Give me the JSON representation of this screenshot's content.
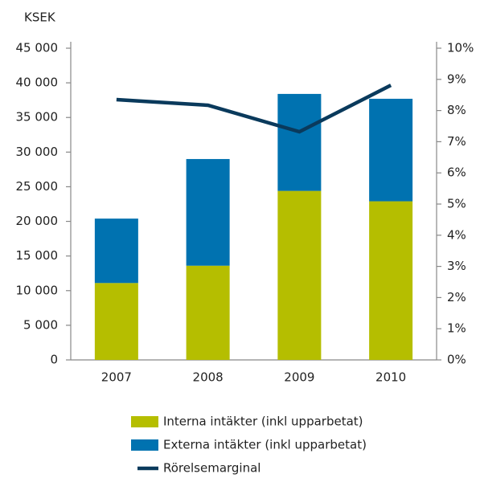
{
  "chart_data": {
    "type": "bar",
    "stacked": true,
    "y_label": "KSEK",
    "categories": [
      "2007",
      "2008",
      "2009",
      "2010"
    ],
    "series": [
      {
        "name": "Interna intäkter (inkl upparbetat)",
        "color": "#b5be00",
        "values": [
          11100,
          13600,
          24400,
          22900
        ]
      },
      {
        "name": "Externa intäkter (inkl upparbetat)",
        "color": "#0072b0",
        "values": [
          9300,
          15400,
          14000,
          14800
        ]
      },
      {
        "name": "Rörelsemarginal",
        "type": "line",
        "axis": "y2",
        "color": "#0a3a5c",
        "values": [
          8.35,
          8.17,
          7.32,
          8.81
        ]
      }
    ],
    "ylim": [
      0,
      45000
    ],
    "yticks": [
      0,
      {
        "value": 5000,
        "label": "5 000"
      },
      {
        "value": 10000,
        "label": "10 000"
      },
      {
        "value": 15000,
        "label": "15 000"
      },
      {
        "value": 20000,
        "label": "20 000"
      },
      {
        "value": 25000,
        "label": "25 000"
      },
      {
        "value": 30000,
        "label": "30 000"
      },
      {
        "value": 35000,
        "label": "35 000"
      },
      {
        "value": 40000,
        "label": "40 000"
      },
      {
        "value": 45000,
        "label": "45 000"
      }
    ],
    "y2lim": [
      0,
      10
    ],
    "y2ticks": [
      {
        "value": 0,
        "label": "0%"
      },
      {
        "value": 1,
        "label": "1%"
      },
      {
        "value": 2,
        "label": "2%"
      },
      {
        "value": 3,
        "label": "3%"
      },
      {
        "value": 4,
        "label": "4%"
      },
      {
        "value": 5,
        "label": "5%"
      },
      {
        "value": 6,
        "label": "6%"
      },
      {
        "value": 7,
        "label": "7%"
      },
      {
        "value": 8,
        "label": "8%"
      },
      {
        "value": 9,
        "label": "9%"
      },
      {
        "value": 10,
        "label": "10%"
      }
    ]
  }
}
